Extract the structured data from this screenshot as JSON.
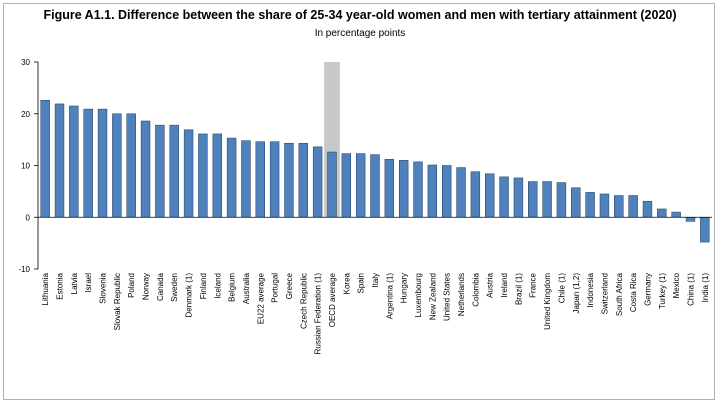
{
  "header": {
    "title": "Figure A1.1. Difference between the share of 25-34 year-old women and men with tertiary attainment (2020)",
    "subtitle": "In percentage points"
  },
  "chart_data": {
    "type": "bar",
    "title": "Figure A1.1. Difference between the share of 25-34 year-old women and men with tertiary attainment (2020)",
    "subtitle": "In percentage points",
    "xlabel": "",
    "ylabel": "",
    "ylim": [
      -10,
      30
    ],
    "yticks": [
      -10,
      0,
      10,
      20,
      30
    ],
    "grid": false,
    "legend": "none",
    "bar_color": "#4f81bd",
    "highlight_category": "OECD average",
    "highlight_color": "#c8c8c8",
    "categories": [
      "Lithuania",
      "Estonia",
      "Latvia",
      "Israel",
      "Slovenia",
      "Slovak Republic",
      "Poland",
      "Norway",
      "Canada",
      "Sweden",
      "Denmark (1)",
      "Finland",
      "Iceland",
      "Belgium",
      "Australia",
      "EU22 average",
      "Portugal",
      "Greece",
      "Czech Republic",
      "Russian Federation (1)",
      "OECD average",
      "Korea",
      "Spain",
      "Italy",
      "Argentina (1)",
      "Hungary",
      "Luxembourg",
      "New Zealand",
      "United States",
      "Netherlands",
      "Colombia",
      "Austria",
      "Ireland",
      "Brazil (1)",
      "France",
      "United Kingdom",
      "Chile (1)",
      "Japan (1,2)",
      "Indonesia",
      "Switzerland",
      "South Africa",
      "Costa Rica",
      "Germany",
      "Turkey (1)",
      "Mexico",
      "China (1)",
      "India (1)"
    ],
    "values": [
      22.6,
      21.9,
      21.5,
      20.9,
      20.9,
      20.0,
      20.0,
      18.6,
      17.8,
      17.8,
      16.9,
      16.1,
      16.1,
      15.3,
      14.8,
      14.6,
      14.6,
      14.3,
      14.3,
      13.6,
      12.6,
      12.3,
      12.3,
      12.1,
      11.2,
      11.0,
      10.7,
      10.1,
      10.0,
      9.6,
      8.8,
      8.4,
      7.8,
      7.6,
      6.9,
      6.9,
      6.7,
      5.7,
      4.8,
      4.5,
      4.2,
      4.2,
      3.1,
      1.6,
      1.0,
      -0.8,
      -4.8
    ]
  }
}
